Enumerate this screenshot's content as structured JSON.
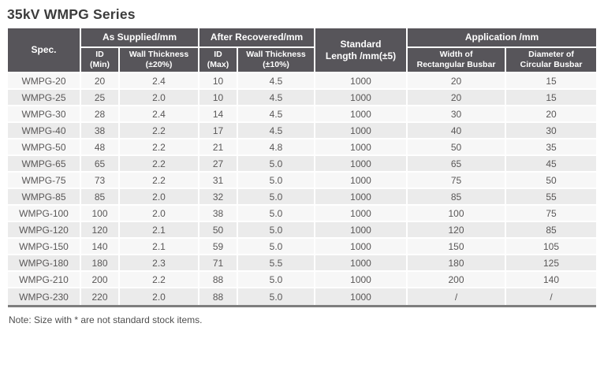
{
  "page": {
    "title": "35kV WMPG Series",
    "note": "Note: Size with * are not standard stock items."
  },
  "colors": {
    "header_bg": "#57555a",
    "row_odd": "#f7f7f7",
    "row_even": "#ebebeb",
    "cell_text": "#595757",
    "bottom_rule": "#7e7e7e"
  },
  "table": {
    "header": {
      "spec": "Spec.",
      "as_supplied": "As Supplied/mm",
      "after_recovered": "After Recovered/mm",
      "standard_length": "Standard\nLength /mm(±5)",
      "application": "Application /mm",
      "id_min": "ID\n(Min)",
      "wall_thickness_20": "Wall Thickness\n(±20%)",
      "id_max": "ID\n(Max)",
      "wall_thickness_10": "Wall Thickness\n(±10%)",
      "width_rect_busbar": "Width of\nRectangular Busbar",
      "dia_circ_busbar": "Diameter of\nCircular Busbar"
    },
    "rows": [
      [
        "WMPG-20",
        "20",
        "2.4",
        "10",
        "4.5",
        "1000",
        "20",
        "15"
      ],
      [
        "WMPG-25",
        "25",
        "2.0",
        "10",
        "4.5",
        "1000",
        "20",
        "15"
      ],
      [
        "WMPG-30",
        "28",
        "2.4",
        "14",
        "4.5",
        "1000",
        "30",
        "20"
      ],
      [
        "WMPG-40",
        "38",
        "2.2",
        "17",
        "4.5",
        "1000",
        "40",
        "30"
      ],
      [
        "WMPG-50",
        "48",
        "2.2",
        "21",
        "4.8",
        "1000",
        "50",
        "35"
      ],
      [
        "WMPG-65",
        "65",
        "2.2",
        "27",
        "5.0",
        "1000",
        "65",
        "45"
      ],
      [
        "WMPG-75",
        "73",
        "2.2",
        "31",
        "5.0",
        "1000",
        "75",
        "50"
      ],
      [
        "WMPG-85",
        "85",
        "2.0",
        "32",
        "5.0",
        "1000",
        "85",
        "55"
      ],
      [
        "WMPG-100",
        "100",
        "2.0",
        "38",
        "5.0",
        "1000",
        "100",
        "75"
      ],
      [
        "WMPG-120",
        "120",
        "2.1",
        "50",
        "5.0",
        "1000",
        "120",
        "85"
      ],
      [
        "WMPG-150",
        "140",
        "2.1",
        "59",
        "5.0",
        "1000",
        "150",
        "105"
      ],
      [
        "WMPG-180",
        "180",
        "2.3",
        "71",
        "5.5",
        "1000",
        "180",
        "125"
      ],
      [
        "WMPG-210",
        "200",
        "2.2",
        "88",
        "5.0",
        "1000",
        "200",
        "140"
      ],
      [
        "WMPG-230",
        "220",
        "2.0",
        "88",
        "5.0",
        "1000",
        "/",
        "/"
      ]
    ]
  }
}
